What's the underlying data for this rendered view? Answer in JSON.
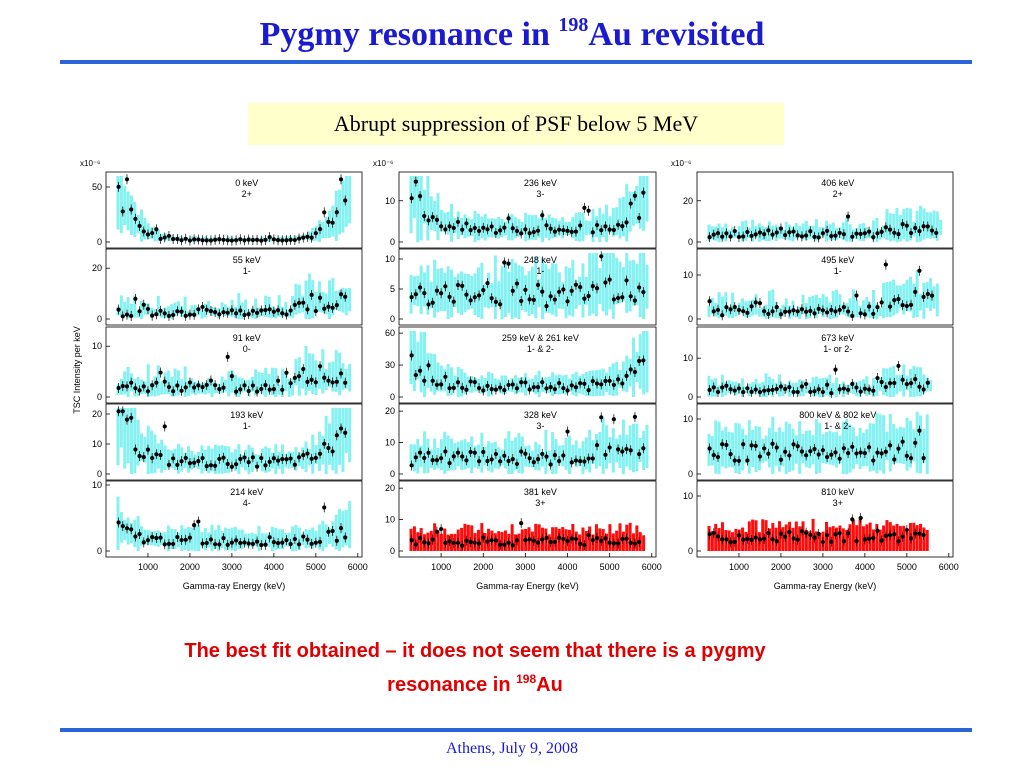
{
  "slide": {
    "title_main": "Pygmy resonance in ",
    "title_sup": "198",
    "title_tail": "Au revisited",
    "callout": "Abrupt suppression of PSF below 5 MeV",
    "conclusion_line1": "The best fit obtained  – it does not seem that there is a pygmy",
    "conclusion_line2_pre": "resonance in ",
    "conclusion_sup": "198",
    "conclusion_line2_post": "Au",
    "footer": "Athens, July 9, 2008"
  },
  "colors": {
    "title": "#1a1ad0",
    "rule": "#2b63d9",
    "callout_bg": "#ffffcc",
    "conclusion": "#e00000",
    "band_cyan": "#7ff0f0",
    "band_red": "#ff0000",
    "points": "#000000"
  },
  "chart_data": [
    {
      "type": "scatter",
      "ylabel": "TSC Intensity per keV",
      "xlabel": "Gamma-ray Energy (keV)",
      "xlim": [
        0,
        6100
      ],
      "xticks": [
        1000,
        2000,
        3000,
        4000,
        5000,
        6000
      ],
      "xtick_labels": [
        "1000",
        "2000",
        "3000",
        "4000",
        "5000",
        "6000"
      ],
      "multiplier": "x10⁻⁶",
      "panels": [
        {
          "level": "0 keV",
          "spin": "2+",
          "band": "cyan",
          "ylim": [
            0,
            60
          ],
          "yticks": [
            "0",
            "50"
          ],
          "yvals": [
            0,
            50
          ],
          "shape": "U",
          "xmax": 5800,
          "base": 2,
          "amp": 20,
          "peak": 60
        },
        {
          "level": "55 keV",
          "spin": "1-",
          "band": "cyan",
          "ylim": [
            0,
            26
          ],
          "yticks": [
            "0",
            "20"
          ],
          "yvals": [
            0,
            20
          ],
          "shape": "flat",
          "xmax": 5800,
          "base": 3,
          "amp": 6,
          "peak": 26
        },
        {
          "level": "91 keV",
          "spin": "0-",
          "band": "cyan",
          "ylim": [
            0,
            13
          ],
          "yticks": [
            "0",
            "10"
          ],
          "yvals": [
            0,
            10
          ],
          "shape": "flat",
          "xmax": 5800,
          "base": 2,
          "amp": 3,
          "peak": 13
        },
        {
          "level": "193 keV",
          "spin": "1-",
          "band": "cyan",
          "ylim": [
            0,
            22
          ],
          "yticks": [
            "0",
            "10",
            "20"
          ],
          "yvals": [
            0,
            10,
            20
          ],
          "shape": "U",
          "xmax": 5800,
          "base": 4,
          "amp": 8,
          "peak": 22
        },
        {
          "level": "214 keV",
          "spin": "4-",
          "band": "cyan",
          "ylim": [
            0,
            10
          ],
          "yticks": [
            "0",
            "10"
          ],
          "yvals": [
            0,
            10
          ],
          "shape": "U",
          "xmax": 5800,
          "base": 1.5,
          "amp": 1,
          "peak": 12
        }
      ]
    },
    {
      "type": "scatter",
      "xlabel": "Gamma-ray Energy (keV)",
      "xlim": [
        0,
        6100
      ],
      "xticks": [
        1000,
        2000,
        3000,
        4000,
        5000,
        6000
      ],
      "xtick_labels": [
        "1000",
        "2000",
        "3000",
        "4000",
        "5000",
        "6000"
      ],
      "multiplier": "x10⁻⁶",
      "panels": [
        {
          "level": "236 keV",
          "spin": "3-",
          "band": "cyan",
          "ylim": [
            0,
            16
          ],
          "yticks": [
            "0",
            "10"
          ],
          "yvals": [
            0,
            10
          ],
          "shape": "U",
          "xmax": 5900,
          "base": 3,
          "amp": 5,
          "peak": 16
        },
        {
          "level": "248 keV",
          "spin": "1-",
          "band": "cyan",
          "ylim": [
            0,
            11
          ],
          "yticks": [
            "0",
            "5",
            "10"
          ],
          "yvals": [
            0,
            5,
            10
          ],
          "shape": "flat",
          "xmax": 5900,
          "base": 4,
          "amp": 2,
          "peak": 11
        },
        {
          "level": "259 keV & 261 keV",
          "spin": "1-  &  2-",
          "band": "cyan",
          "ylim": [
            0,
            62
          ],
          "yticks": [
            "0",
            "30",
            "60"
          ],
          "yvals": [
            0,
            30,
            60
          ],
          "shape": "U",
          "xmax": 5900,
          "base": 10,
          "amp": 15,
          "peak": 62
        },
        {
          "level": "328 keV",
          "spin": "3-",
          "band": "cyan",
          "ylim": [
            0,
            21
          ],
          "yticks": [
            "0",
            "10",
            "20"
          ],
          "yvals": [
            0,
            10,
            20
          ],
          "shape": "flat",
          "xmax": 5900,
          "base": 5,
          "amp": 3,
          "peak": 21
        },
        {
          "level": "381 keV",
          "spin": "3+",
          "band": "red",
          "ylim": [
            0,
            21
          ],
          "yticks": [
            "0",
            "10",
            "20"
          ],
          "yvals": [
            0,
            10,
            20
          ],
          "shape": "flat",
          "xmax": 5800,
          "base": 3,
          "amp": 1,
          "peak": 9
        }
      ]
    },
    {
      "type": "scatter",
      "xlabel": "Gamma-ray Energy (keV)",
      "xlim": [
        0,
        6100
      ],
      "xticks": [
        1000,
        2000,
        3000,
        4000,
        5000,
        6000
      ],
      "xtick_labels": [
        "1000",
        "2000",
        "3000",
        "4000",
        "5000",
        "6000"
      ],
      "multiplier": "x10⁻⁶",
      "panels": [
        {
          "level": "406 keV",
          "spin": "2+",
          "band": "cyan",
          "ylim": [
            0,
            32
          ],
          "yticks": [
            "0",
            "20"
          ],
          "yvals": [
            0,
            20
          ],
          "shape": "flat",
          "xmax": 5800,
          "base": 4,
          "amp": 4,
          "peak": 20
        },
        {
          "level": "495 keV",
          "spin": "1-",
          "band": "cyan",
          "ylim": [
            0,
            15
          ],
          "yticks": [
            "0",
            "10"
          ],
          "yvals": [
            0,
            10
          ],
          "shape": "flat",
          "xmax": 5700,
          "base": 2,
          "amp": 4,
          "peak": 15
        },
        {
          "level": "673 keV",
          "spin": "1- or 2-",
          "band": "cyan",
          "ylim": [
            0,
            17
          ],
          "yticks": [
            "0",
            "10"
          ],
          "yvals": [
            0,
            10
          ],
          "shape": "flat",
          "xmax": 5600,
          "base": 2,
          "amp": 2,
          "peak": 8
        },
        {
          "level": "800 keV & 802 keV",
          "spin": "1- & 2-",
          "band": "cyan",
          "ylim": [
            0,
            12
          ],
          "yticks": [
            "0",
            "10"
          ],
          "yvals": [
            0,
            10
          ],
          "shape": "flat",
          "xmax": 5500,
          "base": 4,
          "amp": 1,
          "peak": 11
        },
        {
          "level": "810 keV",
          "spin": "3+",
          "band": "red",
          "ylim": [
            0,
            12
          ],
          "yticks": [
            "0",
            "10"
          ],
          "yvals": [
            0,
            10
          ],
          "shape": "flat",
          "xmax": 5500,
          "base": 2.5,
          "amp": 0.5,
          "peak": 6
        }
      ]
    }
  ]
}
